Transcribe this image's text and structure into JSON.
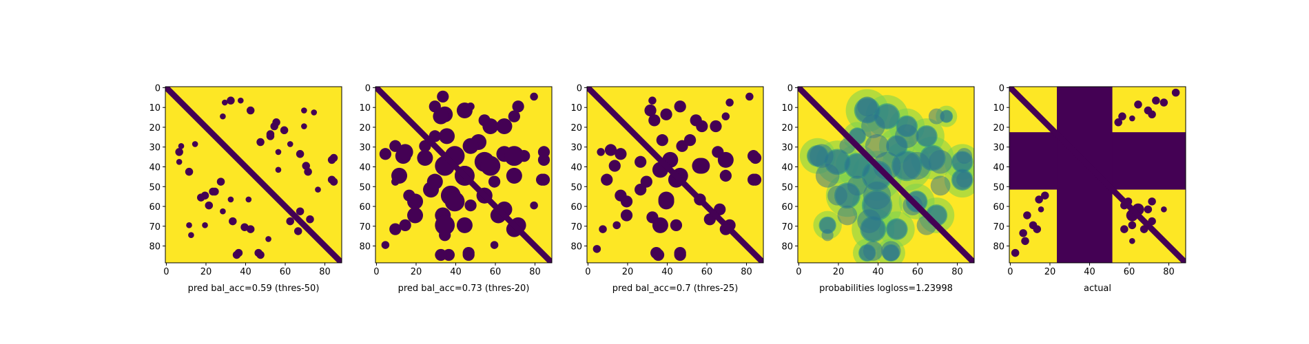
{
  "chart_data": [
    {
      "type": "heatmap",
      "title": "",
      "xlabel": "pred bal_acc=0.59 (thres-50)",
      "xlim": [
        0,
        89
      ],
      "ylim": [
        89,
        0
      ],
      "xticks": [
        0,
        20,
        40,
        60,
        80
      ],
      "yticks": [
        0,
        10,
        20,
        30,
        40,
        50,
        60,
        70,
        80
      ],
      "colormap": "viridis",
      "background_color": "#fde725",
      "blob_color": "#440154",
      "diagonal": {
        "value": 0,
        "width": 3
      },
      "blobs": [
        {
          "x": 30,
          "y": 8,
          "r": 1.5
        },
        {
          "x": 38,
          "y": 7,
          "r": 1.5
        },
        {
          "x": 43,
          "y": 12,
          "r": 2
        },
        {
          "x": 53,
          "y": 25,
          "r": 2
        },
        {
          "x": 55,
          "y": 20,
          "r": 2
        },
        {
          "x": 60,
          "y": 22,
          "r": 2
        },
        {
          "x": 63,
          "y": 29,
          "r": 1.5
        },
        {
          "x": 68,
          "y": 34,
          "r": 2
        },
        {
          "x": 75,
          "y": 13,
          "r": 1.5
        },
        {
          "x": 7,
          "y": 33,
          "r": 2
        },
        {
          "x": 15,
          "y": 29,
          "r": 1.5
        },
        {
          "x": 28,
          "y": 48,
          "r": 2
        },
        {
          "x": 24,
          "y": 53,
          "r": 2
        },
        {
          "x": 18,
          "y": 56,
          "r": 2
        },
        {
          "x": 33,
          "y": 57,
          "r": 1.5
        },
        {
          "x": 43,
          "y": 72,
          "r": 2
        },
        {
          "x": 40,
          "y": 71,
          "r": 2
        },
        {
          "x": 68,
          "y": 63,
          "r": 2
        },
        {
          "x": 73,
          "y": 67,
          "r": 2
        },
        {
          "x": 85,
          "y": 36,
          "r": 2
        },
        {
          "x": 85,
          "y": 48,
          "r": 2
        },
        {
          "x": 52,
          "y": 77,
          "r": 1.5
        },
        {
          "x": 37,
          "y": 84,
          "r": 2
        },
        {
          "x": 47,
          "y": 84,
          "r": 2
        },
        {
          "x": 20,
          "y": 70,
          "r": 1.5
        },
        {
          "x": 12,
          "y": 70,
          "r": 1.5
        },
        {
          "x": 57,
          "y": 42,
          "r": 1.5
        }
      ]
    },
    {
      "type": "heatmap",
      "title": "",
      "xlabel": "pred bal_acc=0.73 (thres-20)",
      "xlim": [
        0,
        89
      ],
      "ylim": [
        89,
        0
      ],
      "xticks": [
        0,
        20,
        40,
        60,
        80
      ],
      "yticks": [
        0,
        10,
        20,
        30,
        40,
        50,
        60,
        70,
        80
      ],
      "colormap": "viridis",
      "background_color": "#fde725",
      "blob_color": "#440154",
      "diagonal": {
        "value": 0,
        "width": 3
      },
      "blobs": [
        {
          "x": 30,
          "y": 10,
          "r": 3
        },
        {
          "x": 35,
          "y": 14,
          "r": 4
        },
        {
          "x": 45,
          "y": 12,
          "r": 4
        },
        {
          "x": 55,
          "y": 17,
          "r": 3
        },
        {
          "x": 65,
          "y": 20,
          "r": 4
        },
        {
          "x": 72,
          "y": 10,
          "r": 3
        },
        {
          "x": 5,
          "y": 34,
          "r": 3
        },
        {
          "x": 15,
          "y": 33,
          "r": 4
        },
        {
          "x": 25,
          "y": 36,
          "r": 4
        },
        {
          "x": 35,
          "y": 40,
          "r": 5
        },
        {
          "x": 45,
          "y": 45,
          "r": 5
        },
        {
          "x": 55,
          "y": 38,
          "r": 5
        },
        {
          "x": 65,
          "y": 34,
          "r": 4
        },
        {
          "x": 75,
          "y": 35,
          "r": 3
        },
        {
          "x": 85,
          "y": 37,
          "r": 3
        },
        {
          "x": 85,
          "y": 47,
          "r": 3
        },
        {
          "x": 28,
          "y": 52,
          "r": 4
        },
        {
          "x": 20,
          "y": 58,
          "r": 4
        },
        {
          "x": 40,
          "y": 58,
          "r": 5
        },
        {
          "x": 35,
          "y": 70,
          "r": 5
        },
        {
          "x": 45,
          "y": 70,
          "r": 4
        },
        {
          "x": 55,
          "y": 55,
          "r": 4
        },
        {
          "x": 65,
          "y": 62,
          "r": 4
        },
        {
          "x": 72,
          "y": 70,
          "r": 4
        },
        {
          "x": 33,
          "y": 85,
          "r": 3
        },
        {
          "x": 47,
          "y": 84,
          "r": 3
        },
        {
          "x": 15,
          "y": 70,
          "r": 3
        },
        {
          "x": 5,
          "y": 80,
          "r": 2
        },
        {
          "x": 60,
          "y": 48,
          "r": 3
        },
        {
          "x": 48,
          "y": 30,
          "r": 4
        },
        {
          "x": 30,
          "y": 25,
          "r": 3
        },
        {
          "x": 80,
          "y": 60,
          "r": 2
        },
        {
          "x": 10,
          "y": 48,
          "r": 2
        }
      ]
    },
    {
      "type": "heatmap",
      "title": "",
      "xlabel": "pred bal_acc=0.7 (thres-25)",
      "xlim": [
        0,
        89
      ],
      "ylim": [
        89,
        0
      ],
      "xticks": [
        0,
        20,
        40,
        60,
        80
      ],
      "yticks": [
        0,
        10,
        20,
        30,
        40,
        50,
        60,
        70,
        80
      ],
      "colormap": "viridis",
      "background_color": "#fde725",
      "blob_color": "#440154",
      "diagonal": {
        "value": 0,
        "width": 3
      },
      "blobs": [
        {
          "x": 32,
          "y": 12,
          "r": 3
        },
        {
          "x": 40,
          "y": 14,
          "r": 3
        },
        {
          "x": 47,
          "y": 10,
          "r": 3
        },
        {
          "x": 55,
          "y": 17,
          "r": 3
        },
        {
          "x": 65,
          "y": 20,
          "r": 3
        },
        {
          "x": 72,
          "y": 8,
          "r": 2
        },
        {
          "x": 7,
          "y": 33,
          "r": 2
        },
        {
          "x": 17,
          "y": 34,
          "r": 3
        },
        {
          "x": 27,
          "y": 38,
          "r": 3
        },
        {
          "x": 37,
          "y": 42,
          "r": 4
        },
        {
          "x": 45,
          "y": 47,
          "r": 4
        },
        {
          "x": 57,
          "y": 40,
          "r": 4
        },
        {
          "x": 66,
          "y": 33,
          "r": 3
        },
        {
          "x": 85,
          "y": 36,
          "r": 3
        },
        {
          "x": 85,
          "y": 47,
          "r": 3
        },
        {
          "x": 27,
          "y": 52,
          "r": 3
        },
        {
          "x": 20,
          "y": 58,
          "r": 3
        },
        {
          "x": 40,
          "y": 58,
          "r": 4
        },
        {
          "x": 37,
          "y": 70,
          "r": 4
        },
        {
          "x": 45,
          "y": 70,
          "r": 3
        },
        {
          "x": 57,
          "y": 57,
          "r": 3
        },
        {
          "x": 67,
          "y": 62,
          "r": 3
        },
        {
          "x": 72,
          "y": 70,
          "r": 3
        },
        {
          "x": 35,
          "y": 84,
          "r": 3
        },
        {
          "x": 47,
          "y": 84,
          "r": 3
        },
        {
          "x": 15,
          "y": 70,
          "r": 2
        },
        {
          "x": 5,
          "y": 82,
          "r": 2
        },
        {
          "x": 48,
          "y": 30,
          "r": 3
        }
      ]
    },
    {
      "type": "heatmap",
      "title": "",
      "xlabel": "probabilities logloss=1.23998",
      "xlim": [
        0,
        89
      ],
      "ylim": [
        89,
        0
      ],
      "xticks": [
        0,
        20,
        40,
        60,
        80
      ],
      "yticks": [
        0,
        10,
        20,
        30,
        40,
        50,
        60,
        70,
        80
      ],
      "colormap": "viridis",
      "background_color": "#fde725",
      "mid_color": "#7ad151",
      "low_color": "#21918c",
      "blob_color": "#2c728e",
      "diagonal": {
        "value": 0,
        "width": 3
      },
      "blobs": [
        {
          "x": 35,
          "y": 12,
          "r": 6
        },
        {
          "x": 45,
          "y": 15,
          "r": 6
        },
        {
          "x": 55,
          "y": 20,
          "r": 5
        },
        {
          "x": 65,
          "y": 25,
          "r": 5
        },
        {
          "x": 10,
          "y": 35,
          "r": 5
        },
        {
          "x": 20,
          "y": 38,
          "r": 6
        },
        {
          "x": 30,
          "y": 40,
          "r": 6
        },
        {
          "x": 40,
          "y": 45,
          "r": 7
        },
        {
          "x": 55,
          "y": 40,
          "r": 7
        },
        {
          "x": 68,
          "y": 36,
          "r": 6
        },
        {
          "x": 83,
          "y": 38,
          "r": 5
        },
        {
          "x": 83,
          "y": 47,
          "r": 5
        },
        {
          "x": 25,
          "y": 55,
          "r": 6
        },
        {
          "x": 40,
          "y": 60,
          "r": 7
        },
        {
          "x": 38,
          "y": 72,
          "r": 6
        },
        {
          "x": 50,
          "y": 72,
          "r": 5
        },
        {
          "x": 60,
          "y": 58,
          "r": 5
        },
        {
          "x": 70,
          "y": 65,
          "r": 5
        },
        {
          "x": 35,
          "y": 84,
          "r": 4
        },
        {
          "x": 47,
          "y": 84,
          "r": 4
        },
        {
          "x": 15,
          "y": 70,
          "r": 4
        },
        {
          "x": 50,
          "y": 30,
          "r": 5
        },
        {
          "x": 30,
          "y": 25,
          "r": 4
        },
        {
          "x": 75,
          "y": 15,
          "r": 3
        }
      ]
    },
    {
      "type": "heatmap",
      "title": "",
      "xlabel": "actual",
      "xlim": [
        0,
        89
      ],
      "ylim": [
        89,
        0
      ],
      "xticks": [
        0,
        20,
        40,
        60,
        80
      ],
      "yticks": [
        0,
        10,
        20,
        30,
        40,
        50,
        60,
        70,
        80
      ],
      "colormap": "viridis",
      "background_color": "#fde725",
      "blob_color": "#440154",
      "diagonal": {
        "value": 0,
        "width": 3
      },
      "masked_rows": [
        23,
        52
      ],
      "masked_cols": [
        24,
        52
      ],
      "blobs": [
        {
          "x": 65,
          "y": 9,
          "r": 2
        },
        {
          "x": 78,
          "y": 8,
          "r": 2
        },
        {
          "x": 72,
          "y": 14,
          "r": 2
        },
        {
          "x": 62,
          "y": 16,
          "r": 1.5
        },
        {
          "x": 15,
          "y": 57,
          "r": 2
        },
        {
          "x": 18,
          "y": 55,
          "r": 2
        },
        {
          "x": 12,
          "y": 70,
          "r": 2
        },
        {
          "x": 7,
          "y": 74,
          "r": 2
        },
        {
          "x": 3,
          "y": 84,
          "r": 2
        },
        {
          "x": 58,
          "y": 60,
          "r": 2
        },
        {
          "x": 65,
          "y": 62,
          "r": 3
        },
        {
          "x": 72,
          "y": 58,
          "r": 2
        },
        {
          "x": 62,
          "y": 70,
          "r": 2
        },
        {
          "x": 68,
          "y": 72,
          "r": 2
        },
        {
          "x": 62,
          "y": 78,
          "r": 1.5
        }
      ]
    }
  ]
}
